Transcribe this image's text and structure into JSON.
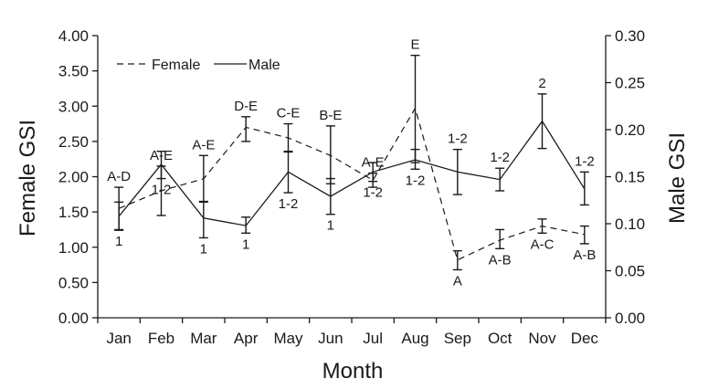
{
  "chart_data": {
    "type": "line",
    "xlabel": "Month",
    "ylabel_left": "Female GSI",
    "ylabel_right": "Male GSI",
    "categories": [
      "Jan",
      "Feb",
      "Mar",
      "Apr",
      "May",
      "Jun",
      "Jul",
      "Aug",
      "Sep",
      "Oct",
      "Nov",
      "Dec"
    ],
    "y_left": {
      "range": [
        0,
        4
      ],
      "ticks": [
        "0.00",
        "0.50",
        "1.00",
        "1.50",
        "2.00",
        "2.50",
        "3.00",
        "3.50",
        "4.00"
      ]
    },
    "y_right": {
      "range": [
        0,
        0.3
      ],
      "ticks": [
        "0.00",
        "0.05",
        "0.10",
        "0.15",
        "0.20",
        "0.25",
        "0.30"
      ]
    },
    "legend": {
      "position": "top-left",
      "female_label": "Female",
      "male_label": "Male"
    },
    "series": [
      {
        "name": "Female",
        "axis": "left",
        "style": "dashed",
        "values": [
          1.55,
          1.8,
          1.97,
          2.7,
          2.55,
          2.3,
          1.95,
          2.97,
          0.82,
          1.1,
          1.3,
          1.18
        ],
        "err_low": [
          1.25,
          1.45,
          1.65,
          2.5,
          2.35,
          1.9,
          1.85,
          2.2,
          0.68,
          0.98,
          1.2,
          1.05
        ],
        "err_high": [
          1.85,
          2.15,
          2.3,
          2.85,
          2.75,
          2.72,
          2.05,
          3.72,
          0.95,
          1.25,
          1.4,
          1.3
        ],
        "sig_labels": [
          "A-D",
          "A-E",
          "A-E",
          "D-E",
          "C-E",
          "B-E",
          "A-E",
          "E",
          "A",
          "A-B",
          "A-C",
          "A-B"
        ],
        "sig_positions": [
          "above",
          "above",
          "above",
          "above",
          "above",
          "above",
          "above",
          "above",
          "below",
          "below",
          "below",
          "below"
        ]
      },
      {
        "name": "Male",
        "axis": "right",
        "style": "solid",
        "values": [
          0.108,
          0.163,
          0.106,
          0.098,
          0.155,
          0.129,
          0.155,
          0.168,
          0.155,
          0.147,
          0.209,
          0.137
        ],
        "err_low": [
          0.093,
          0.148,
          0.085,
          0.09,
          0.133,
          0.11,
          0.145,
          0.158,
          0.131,
          0.135,
          0.18,
          0.12
        ],
        "err_high": [
          0.123,
          0.177,
          0.123,
          0.107,
          0.177,
          0.148,
          0.165,
          0.179,
          0.179,
          0.159,
          0.238,
          0.155
        ],
        "sig_labels": [
          "1",
          "1-2",
          "1",
          "1",
          "1-2",
          "1",
          "1-2",
          "1-2",
          "1-2",
          "1-2",
          "2",
          "1-2"
        ],
        "sig_positions": [
          "below",
          "below",
          "below",
          "below",
          "below",
          "below",
          "below",
          "below",
          "above",
          "above",
          "above",
          "above"
        ]
      }
    ]
  }
}
